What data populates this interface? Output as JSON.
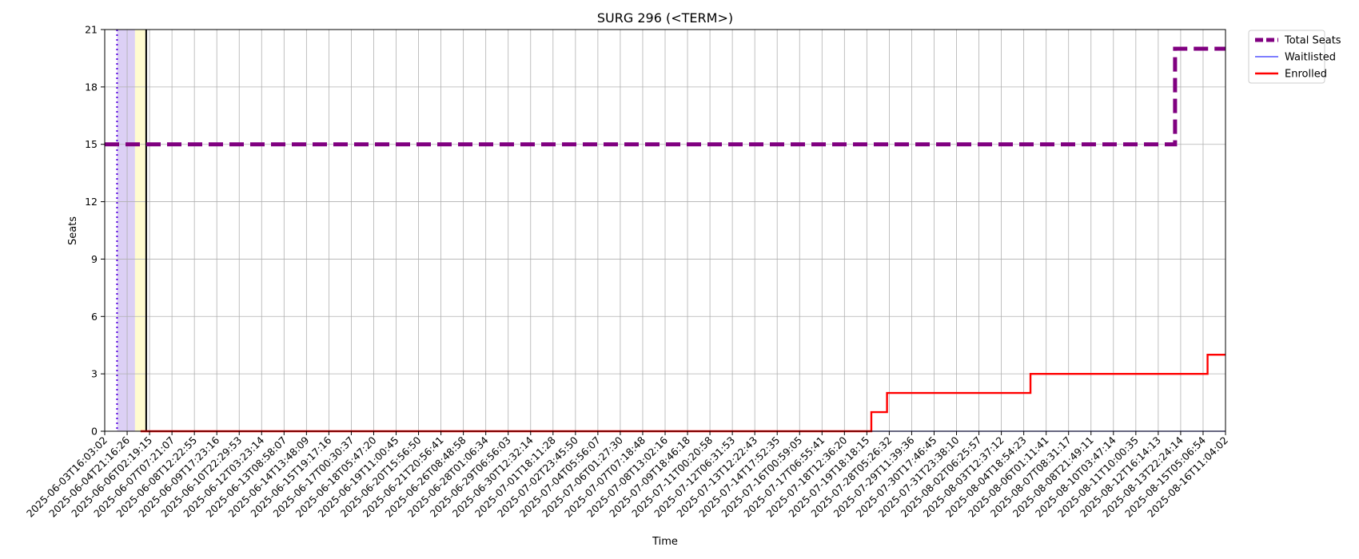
{
  "chart_data": {
    "type": "line",
    "title": "SURG 296 (<TERM>)",
    "xlabel": "Time",
    "ylabel": "Seats",
    "ylim": [
      0,
      21
    ],
    "yticks": [
      0,
      3,
      6,
      9,
      12,
      15,
      18,
      21
    ],
    "grid": true,
    "legend_position": "outside top-right",
    "categories": [
      "2025-06-03T16:03:02",
      "2025-06-04T21:16:26",
      "2025-06-06T02:19:15",
      "2025-06-07T07:21:07",
      "2025-06-08T12:22:55",
      "2025-06-09T17:23:16",
      "2025-06-10T22:29:53",
      "2025-06-12T03:23:14",
      "2025-06-13T08:58:07",
      "2025-06-14T13:48:09",
      "2025-06-15T19:17:16",
      "2025-06-17T00:30:37",
      "2025-06-18T05:47:20",
      "2025-06-19T11:00:45",
      "2025-06-20T15:56:50",
      "2025-06-21T20:56:41",
      "2025-06-26T08:48:58",
      "2025-06-28T01:06:34",
      "2025-06-29T06:56:03",
      "2025-06-30T12:32:14",
      "2025-07-01T18:11:28",
      "2025-07-02T23:45:50",
      "2025-07-04T05:56:07",
      "2025-07-06T01:27:30",
      "2025-07-07T07:18:48",
      "2025-07-08T13:02:16",
      "2025-07-09T18:46:18",
      "2025-07-11T00:20:58",
      "2025-07-12T06:31:53",
      "2025-07-13T12:22:43",
      "2025-07-14T17:52:35",
      "2025-07-16T00:59:05",
      "2025-07-17T06:55:41",
      "2025-07-18T12:36:20",
      "2025-07-19T18:18:15",
      "2025-07-28T05:26:32",
      "2025-07-29T11:39:36",
      "2025-07-30T17:46:45",
      "2025-07-31T23:38:10",
      "2025-08-02T06:25:57",
      "2025-08-03T12:37:12",
      "2025-08-04T18:54:23",
      "2025-08-06T01:11:41",
      "2025-08-07T08:31:17",
      "2025-08-08T21:49:11",
      "2025-08-10T03:47:14",
      "2025-08-11T10:00:35",
      "2025-08-12T16:14:13",
      "2025-08-13T22:24:14",
      "2025-08-15T05:06:54",
      "2025-08-16T11:04:02"
    ],
    "series": [
      {
        "name": "Total Seats",
        "color": "#800080",
        "style": "dashed",
        "step_points": [
          [
            0,
            15
          ],
          [
            47.75,
            15
          ],
          [
            47.75,
            20
          ],
          [
            50,
            20
          ]
        ]
      },
      {
        "name": "Waitlisted",
        "color": "#3333ff",
        "style": "solid",
        "step_points": [
          [
            34.2,
            0
          ],
          [
            50,
            0
          ]
        ]
      },
      {
        "name": "Enrolled",
        "color": "#ff0000",
        "style": "solid",
        "step_points": [
          [
            1.6,
            0
          ],
          [
            34.2,
            0
          ],
          [
            34.2,
            1
          ],
          [
            34.9,
            1
          ],
          [
            34.9,
            2
          ],
          [
            41.3,
            2
          ],
          [
            41.3,
            3
          ],
          [
            49.2,
            3
          ],
          [
            49.2,
            4
          ],
          [
            50,
            4
          ]
        ]
      }
    ],
    "annotations": {
      "dotted_line_x": 0.55,
      "shaded_span_purple": [
        0.55,
        1.35
      ],
      "shaded_span_yellow": [
        1.35,
        1.85
      ],
      "solid_line_x": 1.85,
      "shade_colors": {
        "purple": "#dcd0f5",
        "yellow": "#fffbd0",
        "dotted": "#5500dd",
        "solid": "#000000"
      }
    }
  }
}
